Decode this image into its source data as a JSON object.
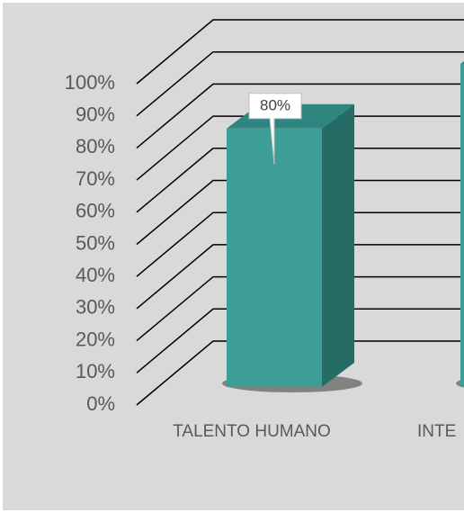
{
  "chart_data": {
    "type": "bar3d",
    "categories": [
      "TALENTO HUMANO",
      "INTE"
    ],
    "values": [
      80,
      100
    ],
    "value_labels": [
      "80%",
      null
    ],
    "color": "#3d9e98",
    "ylim": [
      0,
      100
    ],
    "yticks": [
      {
        "value": 0,
        "label": "0%"
      },
      {
        "value": 10,
        "label": "10%"
      },
      {
        "value": 20,
        "label": "20%"
      },
      {
        "value": 30,
        "label": "30%"
      },
      {
        "value": 40,
        "label": "40%"
      },
      {
        "value": 50,
        "label": "50%"
      },
      {
        "value": 60,
        "label": "60%"
      },
      {
        "value": 70,
        "label": "70%"
      },
      {
        "value": 80,
        "label": "80%"
      },
      {
        "value": 90,
        "label": "90%"
      },
      {
        "value": 100,
        "label": "100%"
      }
    ],
    "grid": true
  }
}
